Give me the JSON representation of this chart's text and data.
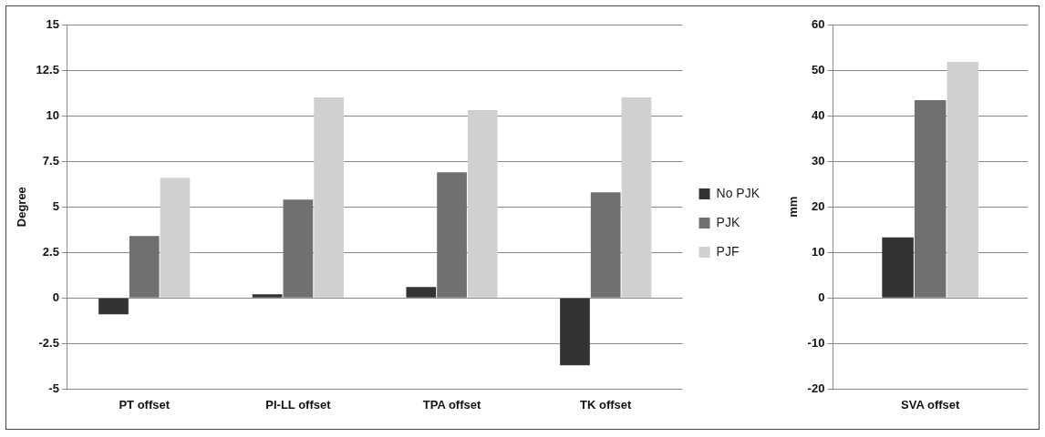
{
  "chart_data": [
    {
      "type": "bar",
      "ylabel": "Degree",
      "categories": [
        "PT offset",
        "PI-LL offset",
        "TPA offset",
        "TK offset"
      ],
      "series": [
        {
          "name": "No PJK",
          "color": "#333333",
          "values": [
            -0.9,
            0.2,
            0.6,
            -3.7
          ]
        },
        {
          "name": "PJK",
          "color": "#707070",
          "values": [
            3.4,
            5.4,
            6.9,
            5.8
          ]
        },
        {
          "name": "PJF",
          "color": "#d0d0d0",
          "values": [
            6.6,
            11.0,
            10.3,
            11.0
          ]
        }
      ],
      "ylim": [
        -5,
        15
      ],
      "yticks": [
        -5,
        -2.5,
        0,
        2.5,
        5,
        7.5,
        10,
        12.5,
        15
      ],
      "grid": "y",
      "legend": "right"
    },
    {
      "type": "bar",
      "ylabel": "mm",
      "categories": [
        "SVA offset"
      ],
      "series": [
        {
          "color": "#333333",
          "values": [
            13.3
          ]
        },
        {
          "color": "#707070",
          "values": [
            43.4
          ]
        },
        {
          "color": "#d0d0d0",
          "values": [
            51.8
          ]
        }
      ],
      "ylim": [
        -20,
        60
      ],
      "yticks": [
        -20,
        -10,
        0,
        10,
        20,
        30,
        40,
        50,
        60
      ],
      "grid": "y"
    }
  ]
}
